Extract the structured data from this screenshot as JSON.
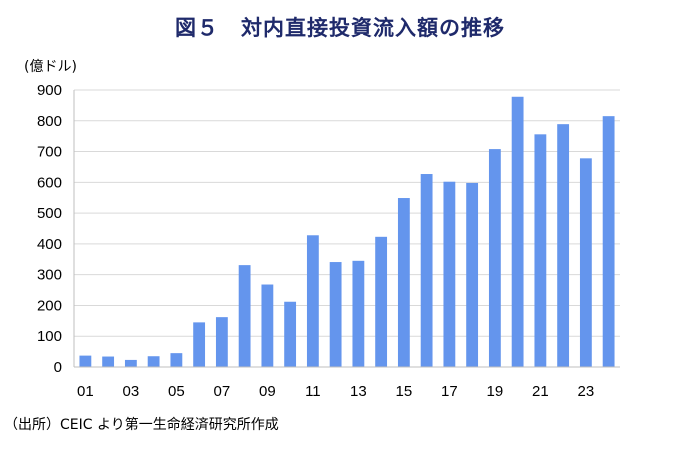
{
  "title": "図５　対内直接投資流入額の推移",
  "source_note": "（出所）CEIC より第一生命経済研究所作成",
  "chart_data": {
    "type": "bar",
    "ylabel": "(億ドル)",
    "ylim": [
      0,
      900
    ],
    "yticks": [
      "0",
      "100",
      "200",
      "300",
      "400",
      "500",
      "600",
      "700",
      "800",
      "900"
    ],
    "categories": [
      "01",
      "02",
      "03",
      "04",
      "05",
      "06",
      "07",
      "08",
      "09",
      "10",
      "11",
      "12",
      "13",
      "14",
      "15",
      "16",
      "17",
      "18",
      "19",
      "20",
      "21",
      "22",
      "23",
      "24"
    ],
    "xtick_labels": [
      "01",
      "",
      "03",
      "",
      "05",
      "",
      "07",
      "",
      "09",
      "",
      "11",
      "",
      "13",
      "",
      "15",
      "",
      "17",
      "",
      "19",
      "",
      "21",
      "",
      "23",
      ""
    ],
    "values": [
      37,
      34,
      23,
      35,
      45,
      145,
      162,
      331,
      268,
      212,
      428,
      341,
      345,
      423,
      549,
      627,
      602,
      598,
      708,
      878,
      756,
      789,
      678,
      815
    ],
    "grid": true,
    "legend": "none",
    "bar_color": "#6495ed"
  }
}
